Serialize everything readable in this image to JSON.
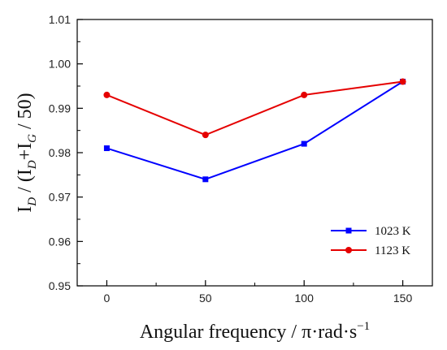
{
  "chart_data": {
    "type": "line",
    "x": [
      0,
      50,
      100,
      150
    ],
    "xticks": [
      "0",
      "50",
      "100",
      "150"
    ],
    "xlim": [
      -15,
      165
    ],
    "xlabel": "Angular frequency / π·rad·s",
    "xlabel_sup": "−1",
    "ylabel_parts": [
      "I",
      "D",
      " / (I",
      "D",
      "+I",
      "G",
      " / 50)"
    ],
    "yticks": [
      "0.95",
      "0.96",
      "0.97",
      "0.98",
      "0.99",
      "1.00",
      "1.01"
    ],
    "ylim": [
      0.95,
      1.01
    ],
    "legend_position": "bottom-right",
    "series": [
      {
        "name": "1023 K",
        "color": "#0000ff",
        "marker": "square",
        "values": [
          0.981,
          0.974,
          0.982,
          0.996
        ]
      },
      {
        "name": "1123 K",
        "color": "#e50000",
        "marker": "circle",
        "values": [
          0.993,
          0.984,
          0.993,
          0.996
        ]
      }
    ]
  }
}
